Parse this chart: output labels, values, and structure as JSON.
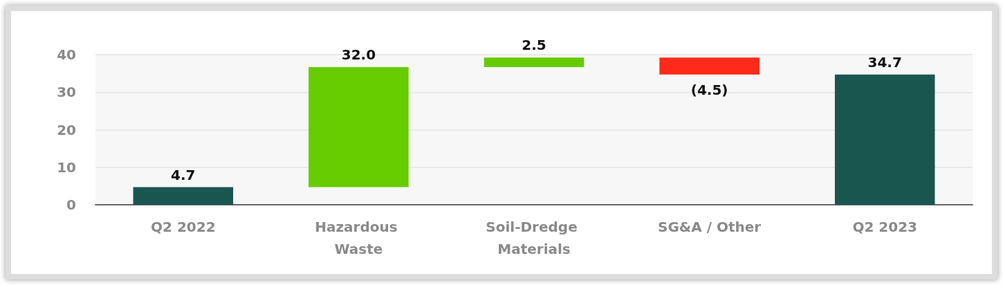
{
  "chart_data": {
    "type": "bar",
    "categories": [
      "Q2 2022",
      "Hazardous Waste",
      "Soil-Dredge Materials",
      "SG&A / Other",
      "Q2 2023"
    ],
    "values": [
      4.7,
      32.0,
      2.5,
      -4.5,
      34.7
    ],
    "base": [
      0,
      4.7,
      36.7,
      39.2,
      0
    ],
    "value_labels": [
      "4.7",
      "32.0",
      "2.5",
      "(4.5)",
      "34.7"
    ],
    "colors": [
      "#1a5650",
      "#66cc00",
      "#66cc00",
      "#ff2a1a",
      "#1a5650"
    ],
    "ylim": [
      0,
      40
    ],
    "yticks": [
      0,
      10,
      20,
      30,
      40
    ],
    "grid": "y"
  }
}
